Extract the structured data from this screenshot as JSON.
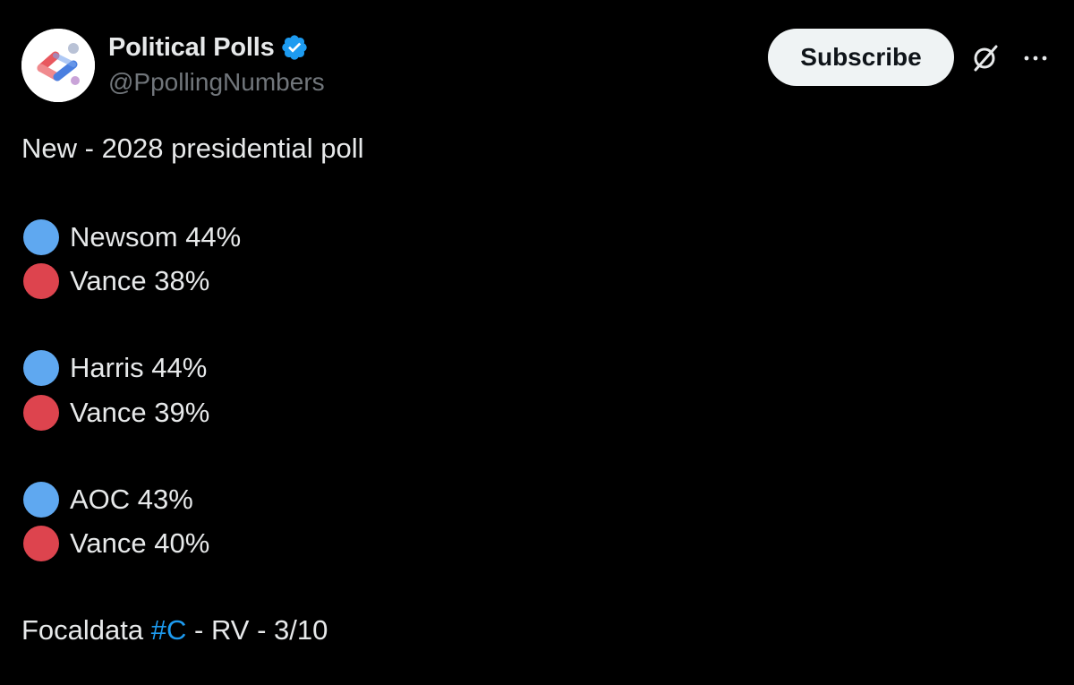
{
  "author": {
    "display_name": "Political Polls",
    "handle": "@PpollingNumbers",
    "verified": true,
    "verified_color": "#1d9bf0"
  },
  "header": {
    "subscribe_label": "Subscribe",
    "grok_icon": "grok-icon",
    "more_icon": "more-icon"
  },
  "tweet": {
    "headline": "New - 2028 presidential poll",
    "matchups": [
      {
        "dem": {
          "label": "Newsom 44%",
          "color": "#5fa8f0"
        },
        "rep": {
          "label": "Vance 38%",
          "color": "#dd444e"
        }
      },
      {
        "dem": {
          "label": "Harris 44%",
          "color": "#5fa8f0"
        },
        "rep": {
          "label": "Vance 39%",
          "color": "#dd444e"
        }
      },
      {
        "dem": {
          "label": "AOC 43%",
          "color": "#5fa8f0"
        },
        "rep": {
          "label": "Vance 40%",
          "color": "#dd444e"
        }
      }
    ],
    "footer": {
      "prefix": "Focaldata ",
      "hashtag": "#C",
      "suffix": " - RV - 3/10"
    }
  }
}
